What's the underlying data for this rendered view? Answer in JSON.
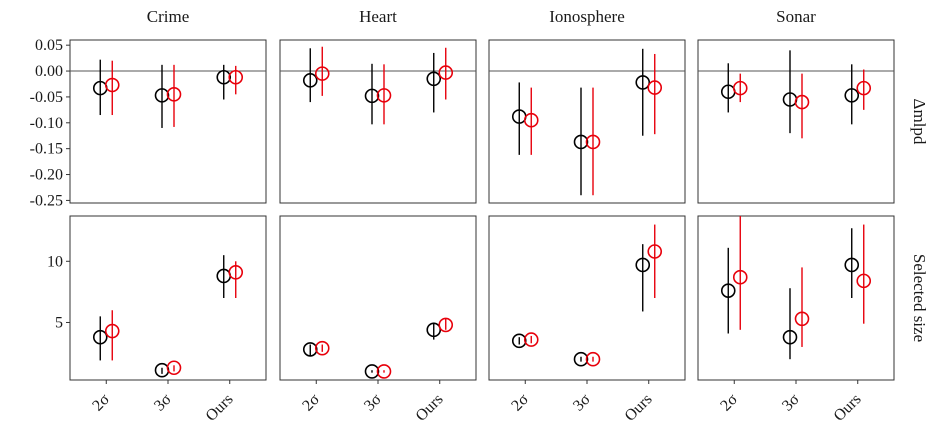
{
  "colors": {
    "black_series": "#000000",
    "red_series": "#e8000b",
    "panel_border": "#333333",
    "zero_line": "#555555"
  },
  "chart_data": {
    "type": "scatter",
    "style": "point-range (circle with vertical error bar), two series dodged per category, 2x4 facet grid",
    "columns": [
      "Crime",
      "Heart",
      "Ionosphere",
      "Sonar"
    ],
    "rows": [
      "Δmlpd",
      "Selected size"
    ],
    "categories": [
      "2σ",
      "3σ",
      "Ours"
    ],
    "x_tick_labels": [
      "2σ",
      "3σ",
      "Ours"
    ],
    "row_axes": [
      {
        "ylim": [
          -0.255,
          0.06
        ],
        "yticks": [
          0.05,
          0.0,
          -0.05,
          -0.1,
          -0.15,
          -0.2,
          -0.25
        ],
        "ytick_labels": [
          "0.05",
          "0.00",
          "-0.05",
          "-0.10",
          "-0.15",
          "-0.20",
          "-0.25"
        ],
        "zero_line": true
      },
      {
        "ylim": [
          0.3,
          13.7
        ],
        "yticks": [
          5,
          10
        ],
        "ytick_labels": [
          "5",
          "10"
        ],
        "zero_line": false
      }
    ],
    "panels": [
      {
        "row": 0,
        "col": 0,
        "series": [
          {
            "color": "black",
            "points": [
              {
                "y": -0.033,
                "lo": -0.085,
                "hi": 0.022
              },
              {
                "y": -0.047,
                "lo": -0.11,
                "hi": 0.012
              },
              {
                "y": -0.012,
                "lo": -0.055,
                "hi": 0.012
              }
            ]
          },
          {
            "color": "red",
            "points": [
              {
                "y": -0.027,
                "lo": -0.085,
                "hi": 0.02
              },
              {
                "y": -0.045,
                "lo": -0.108,
                "hi": 0.012
              },
              {
                "y": -0.012,
                "lo": -0.045,
                "hi": 0.01
              }
            ]
          }
        ]
      },
      {
        "row": 0,
        "col": 1,
        "series": [
          {
            "color": "black",
            "points": [
              {
                "y": -0.018,
                "lo": -0.06,
                "hi": 0.044
              },
              {
                "y": -0.048,
                "lo": -0.103,
                "hi": 0.014
              },
              {
                "y": -0.015,
                "lo": -0.08,
                "hi": 0.035
              }
            ]
          },
          {
            "color": "red",
            "points": [
              {
                "y": -0.005,
                "lo": -0.048,
                "hi": 0.047
              },
              {
                "y": -0.047,
                "lo": -0.103,
                "hi": 0.013
              },
              {
                "y": -0.003,
                "lo": -0.055,
                "hi": 0.045
              }
            ]
          }
        ]
      },
      {
        "row": 0,
        "col": 2,
        "series": [
          {
            "color": "black",
            "points": [
              {
                "y": -0.088,
                "lo": -0.162,
                "hi": -0.022
              },
              {
                "y": -0.137,
                "lo": -0.24,
                "hi": -0.032
              },
              {
                "y": -0.022,
                "lo": -0.125,
                "hi": 0.043
              }
            ]
          },
          {
            "color": "red",
            "points": [
              {
                "y": -0.095,
                "lo": -0.162,
                "hi": -0.032
              },
              {
                "y": -0.137,
                "lo": -0.24,
                "hi": -0.032
              },
              {
                "y": -0.032,
                "lo": -0.122,
                "hi": 0.033
              }
            ]
          }
        ]
      },
      {
        "row": 0,
        "col": 3,
        "series": [
          {
            "color": "black",
            "points": [
              {
                "y": -0.04,
                "lo": -0.08,
                "hi": 0.015
              },
              {
                "y": -0.055,
                "lo": -0.12,
                "hi": 0.04
              },
              {
                "y": -0.047,
                "lo": -0.103,
                "hi": 0.013
              }
            ]
          },
          {
            "color": "red",
            "points": [
              {
                "y": -0.033,
                "lo": -0.06,
                "hi": -0.005
              },
              {
                "y": -0.06,
                "lo": -0.13,
                "hi": -0.005
              },
              {
                "y": -0.033,
                "lo": -0.075,
                "hi": 0.003
              }
            ]
          }
        ]
      },
      {
        "row": 1,
        "col": 0,
        "series": [
          {
            "color": "black",
            "points": [
              {
                "y": 3.8,
                "lo": 1.9,
                "hi": 5.5
              },
              {
                "y": 1.1,
                "lo": 0.8,
                "hi": 1.3
              },
              {
                "y": 8.8,
                "lo": 7.0,
                "hi": 10.5
              }
            ]
          },
          {
            "color": "red",
            "points": [
              {
                "y": 4.3,
                "lo": 1.9,
                "hi": 6.0
              },
              {
                "y": 1.3,
                "lo": 1.0,
                "hi": 1.5
              },
              {
                "y": 9.1,
                "lo": 7.0,
                "hi": 10.0
              }
            ]
          }
        ]
      },
      {
        "row": 1,
        "col": 1,
        "series": [
          {
            "color": "black",
            "points": [
              {
                "y": 2.8,
                "lo": 2.3,
                "hi": 3.2
              },
              {
                "y": 1.0,
                "lo": 0.9,
                "hi": 1.1
              },
              {
                "y": 4.4,
                "lo": 3.6,
                "hi": 5.0
              }
            ]
          },
          {
            "color": "red",
            "points": [
              {
                "y": 2.9,
                "lo": 2.6,
                "hi": 3.2
              },
              {
                "y": 1.0,
                "lo": 0.9,
                "hi": 1.1
              },
              {
                "y": 4.8,
                "lo": 4.4,
                "hi": 5.3
              }
            ]
          }
        ]
      },
      {
        "row": 1,
        "col": 2,
        "series": [
          {
            "color": "black",
            "points": [
              {
                "y": 3.5,
                "lo": 3.2,
                "hi": 3.8
              },
              {
                "y": 2.0,
                "lo": 1.8,
                "hi": 2.2
              },
              {
                "y": 9.7,
                "lo": 5.9,
                "hi": 11.4
              }
            ]
          },
          {
            "color": "red",
            "points": [
              {
                "y": 3.6,
                "lo": 3.3,
                "hi": 3.9
              },
              {
                "y": 2.0,
                "lo": 1.8,
                "hi": 2.2
              },
              {
                "y": 10.8,
                "lo": 7.0,
                "hi": 13.0
              }
            ]
          }
        ]
      },
      {
        "row": 1,
        "col": 3,
        "series": [
          {
            "color": "black",
            "points": [
              {
                "y": 7.6,
                "lo": 4.1,
                "hi": 11.1
              },
              {
                "y": 3.8,
                "lo": 2.0,
                "hi": 7.8
              },
              {
                "y": 9.7,
                "lo": 7.0,
                "hi": 12.7
              }
            ]
          },
          {
            "color": "red",
            "points": [
              {
                "y": 8.7,
                "lo": 4.4,
                "hi": 13.7
              },
              {
                "y": 5.3,
                "lo": 3.0,
                "hi": 9.5
              },
              {
                "y": 8.4,
                "lo": 4.9,
                "hi": 13.0
              }
            ]
          }
        ]
      }
    ]
  }
}
